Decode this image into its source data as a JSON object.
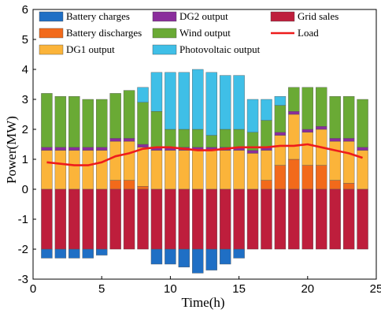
{
  "chart_data": {
    "type": "bar",
    "stacked": true,
    "xlabel": "Time(h)",
    "ylabel": "Power(MW)",
    "xlim": [
      0,
      25
    ],
    "ylim": [
      -3,
      6
    ],
    "xticks": [
      0,
      5,
      10,
      15,
      20,
      25
    ],
    "yticks": [
      -3,
      -2,
      -1,
      0,
      1,
      2,
      3,
      4,
      5,
      6
    ],
    "grid": false,
    "legend_placement": "top",
    "x": [
      1,
      2,
      3,
      4,
      5,
      6,
      7,
      8,
      9,
      10,
      11,
      12,
      13,
      14,
      15,
      16,
      17,
      18,
      19,
      20,
      21,
      22,
      23,
      24
    ],
    "series": [
      {
        "name": "Battery charges",
        "color": "#1f6fc5",
        "values": [
          -0.3,
          -0.3,
          -0.3,
          -0.3,
          -0.2,
          0,
          0,
          0,
          -0.5,
          -0.5,
          -0.6,
          -0.8,
          -0.7,
          -0.5,
          -0.3,
          0,
          0,
          0,
          0,
          0,
          0,
          0,
          0,
          0
        ]
      },
      {
        "name": "Battery discharges",
        "color": "#f26a1b",
        "values": [
          0,
          0,
          0,
          0,
          0,
          0.3,
          0.3,
          0.1,
          0,
          0,
          0,
          0,
          0,
          0,
          0,
          0,
          0.3,
          0.8,
          1.0,
          0.8,
          0.8,
          0.3,
          0.2,
          0
        ]
      },
      {
        "name": "DG1 output",
        "color": "#fbb43a",
        "values": [
          1.3,
          1.3,
          1.3,
          1.3,
          1.3,
          1.3,
          1.3,
          1.3,
          1.3,
          1.3,
          1.3,
          1.3,
          1.3,
          1.3,
          1.3,
          1.2,
          1.0,
          1.0,
          1.5,
          1.1,
          1.2,
          1.3,
          1.4,
          1.3
        ]
      },
      {
        "name": "DG2 output",
        "color": "#8a2d9c",
        "values": [
          0.1,
          0.1,
          0.1,
          0.1,
          0.1,
          0.1,
          0.1,
          0.1,
          0.1,
          0.1,
          0.1,
          0.1,
          0.1,
          0.1,
          0.1,
          0.1,
          0.1,
          0.1,
          0.1,
          0.1,
          0.1,
          0.1,
          0.1,
          0.1
        ]
      },
      {
        "name": "Wind output",
        "color": "#6aaa35",
        "values": [
          1.8,
          1.7,
          1.7,
          1.6,
          1.6,
          1.5,
          1.6,
          1.4,
          1.2,
          0.6,
          0.6,
          0.6,
          0.4,
          0.6,
          0.6,
          0.6,
          0.9,
          0.9,
          0.8,
          1.4,
          1.3,
          1.4,
          1.4,
          1.6
        ]
      },
      {
        "name": "Photovoltaic output",
        "color": "#3fbfe7",
        "values": [
          0,
          0,
          0,
          0,
          0,
          0,
          0,
          0.5,
          1.3,
          1.9,
          1.9,
          2.0,
          2.1,
          1.8,
          1.8,
          1.1,
          0.7,
          0.3,
          0,
          0,
          0,
          0,
          0,
          0
        ]
      },
      {
        "name": "Grid sales",
        "color": "#be1e3c",
        "values": [
          -2.0,
          -2.0,
          -2.0,
          -2.0,
          -2.0,
          -2.0,
          -2.0,
          -2.0,
          -2.0,
          -2.0,
          -2.0,
          -2.0,
          -2.0,
          -2.0,
          -2.0,
          -2.0,
          -2.0,
          -2.0,
          -2.0,
          -2.0,
          -2.0,
          -2.0,
          -2.0,
          -2.0
        ]
      }
    ],
    "line_series": {
      "name": "Load",
      "color": "#ee1c1c",
      "values": [
        0.9,
        0.85,
        0.8,
        0.8,
        0.9,
        1.1,
        1.2,
        1.35,
        1.4,
        1.4,
        1.35,
        1.3,
        1.3,
        1.35,
        1.4,
        1.4,
        1.4,
        1.45,
        1.45,
        1.5,
        1.4,
        1.3,
        1.2,
        1.05
      ]
    }
  }
}
